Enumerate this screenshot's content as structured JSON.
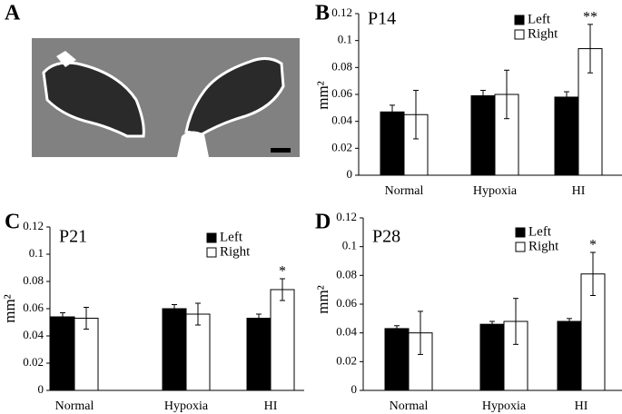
{
  "image_panel": {
    "panel_label": "A"
  },
  "chart_data": [
    {
      "type": "bar",
      "panel_label": "B",
      "title": "P14",
      "y_label": "mm²",
      "categories": [
        "Normal",
        "Hypoxia",
        "HI"
      ],
      "series": [
        {
          "name": "Left",
          "color": "#000000",
          "values": [
            0.047,
            0.059,
            0.058
          ],
          "errors": [
            0.005,
            0.004,
            0.004
          ]
        },
        {
          "name": "Right",
          "color": "#ffffff",
          "values": [
            0.045,
            0.06,
            0.094
          ],
          "errors": [
            0.018,
            0.018,
            0.018
          ]
        }
      ],
      "annotations": [
        null,
        null,
        "**"
      ],
      "ylim": [
        0,
        0.12
      ],
      "yticks": [
        0,
        0.02,
        0.04,
        0.06,
        0.08,
        0.1,
        0.12
      ]
    },
    {
      "type": "bar",
      "panel_label": "C",
      "title": "P21",
      "y_label": "mm²",
      "categories": [
        "Normal",
        "Hypoxia",
        "HI"
      ],
      "series": [
        {
          "name": "Left",
          "color": "#000000",
          "values": [
            0.054,
            0.06,
            0.053
          ],
          "errors": [
            0.003,
            0.003,
            0.003
          ]
        },
        {
          "name": "Right",
          "color": "#ffffff",
          "values": [
            0.053,
            0.056,
            0.074
          ],
          "errors": [
            0.008,
            0.008,
            0.008
          ]
        }
      ],
      "annotations": [
        null,
        null,
        "*"
      ],
      "ylim": [
        0,
        0.12
      ],
      "yticks": [
        0,
        0.02,
        0.04,
        0.06,
        0.08,
        0.1,
        0.12
      ]
    },
    {
      "type": "bar",
      "panel_label": "D",
      "title": "P28",
      "y_label": "mm²",
      "categories": [
        "Normal",
        "Hypoxia",
        "HI"
      ],
      "series": [
        {
          "name": "Left",
          "color": "#000000",
          "values": [
            0.043,
            0.046,
            0.048
          ],
          "errors": [
            0.002,
            0.002,
            0.002
          ]
        },
        {
          "name": "Right",
          "color": "#ffffff",
          "values": [
            0.04,
            0.048,
            0.081
          ],
          "errors": [
            0.015,
            0.016,
            0.015
          ]
        }
      ],
      "annotations": [
        null,
        null,
        "*"
      ],
      "ylim": [
        0,
        0.12
      ],
      "yticks": [
        0,
        0.02,
        0.04,
        0.06,
        0.08,
        0.1,
        0.12
      ]
    }
  ]
}
